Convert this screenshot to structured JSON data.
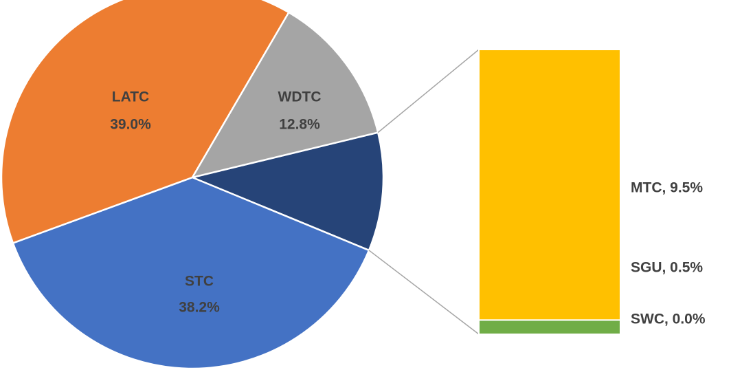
{
  "chart_data": {
    "type": "pie-of-bar",
    "pie": {
      "categories": [
        "STC",
        "LATC",
        "WDTC"
      ],
      "values": [
        38.2,
        39.0,
        12.8
      ],
      "value_labels": [
        "38.2%",
        "39.0%",
        "12.8%"
      ],
      "colors": [
        "#4472c4",
        "#ed7d31",
        "#a5a5a5"
      ],
      "other_color": "#264478"
    },
    "bar": {
      "values": [
        0.0,
        0.5,
        9.5
      ],
      "value_labels": [
        "SWC, 0.0%",
        "SGU, 0.5%",
        "MTC, 9.5%"
      ],
      "colors": [
        "#5b9bd5",
        "#70ad47",
        "#ffc000"
      ]
    }
  }
}
